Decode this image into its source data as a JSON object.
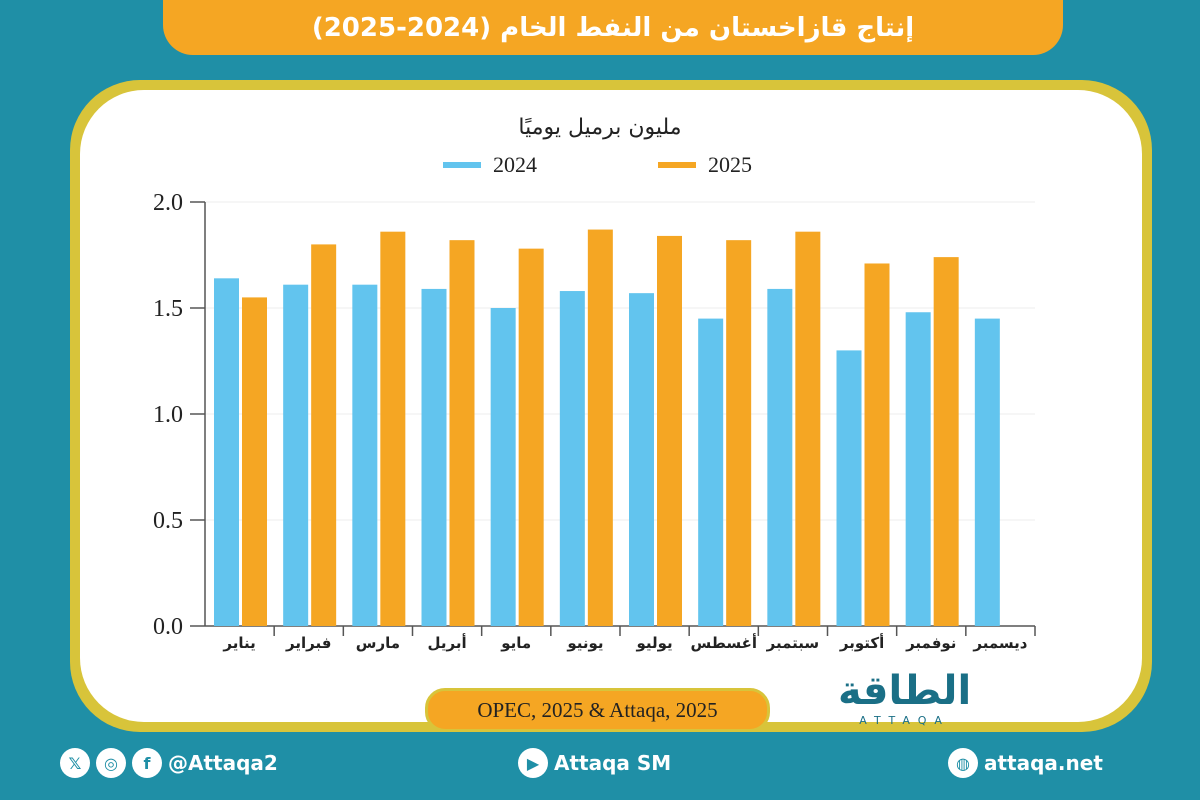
{
  "header": {
    "title": "إنتاج قازاخستان من النفط الخام (2024-2025)"
  },
  "chart_data": {
    "type": "bar",
    "title": "إنتاج قازاخستان من النفط الخام (2024-2025)",
    "ylabel": "مليون برميل يوميًا",
    "categories": [
      "يناير",
      "فبراير",
      "مارس",
      "أبريل",
      "مايو",
      "يونيو",
      "يوليو",
      "أغسطس",
      "سبتمبر",
      "أكتوبر",
      "نوفمبر",
      "ديسمبر"
    ],
    "series": [
      {
        "name": "2024",
        "color": "#62c4ee",
        "values": [
          1.64,
          1.61,
          1.61,
          1.59,
          1.5,
          1.58,
          1.57,
          1.45,
          1.59,
          1.3,
          1.48,
          1.45
        ]
      },
      {
        "name": "2025",
        "color": "#f5a623",
        "values": [
          1.55,
          1.8,
          1.86,
          1.82,
          1.78,
          1.87,
          1.84,
          1.82,
          1.86,
          1.71,
          1.74,
          null
        ]
      }
    ],
    "ylim": [
      0,
      2.0
    ],
    "yticks": [
      "0.0",
      "0.5",
      "1.0",
      "1.5",
      "2.0"
    ],
    "grid": true,
    "legend": "top"
  },
  "source": "OPEC, 2025 & Attaqa, 2025",
  "logo": {
    "text": "الطاقة",
    "sub": "ATTAQA"
  },
  "footer": {
    "social_handle": "@Attaqa2",
    "youtube": "Attaqa SM",
    "website": "attaqa.net"
  }
}
